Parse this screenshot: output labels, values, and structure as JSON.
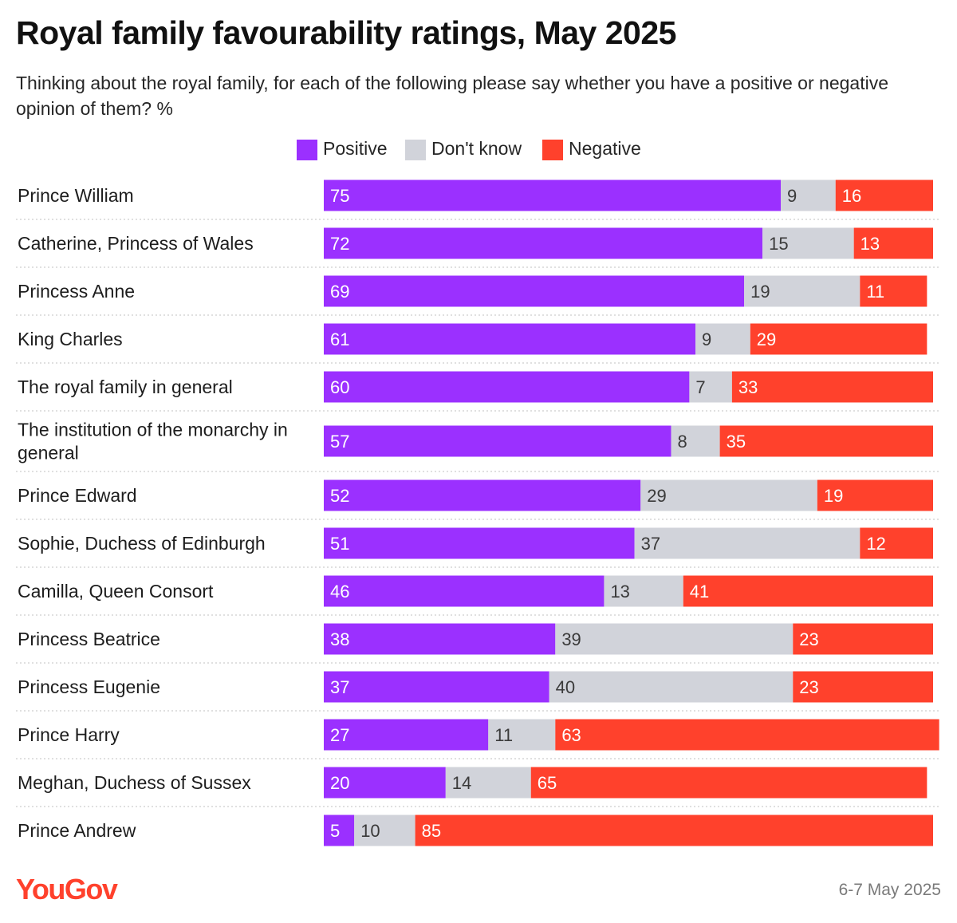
{
  "title": "Royal family favourability ratings, May 2025",
  "subtitle": "Thinking about the royal family, for each of the following please say whether you have a positive or negative opinion of them? %",
  "brand": "YouGov",
  "date_note": "6-7 May 2025",
  "colors": {
    "positive": "#9b30ff",
    "dont_know": "#d1d3da",
    "negative": "#ff412c",
    "divider": "#d6d6d6",
    "brand": "#ff412c"
  },
  "chart_data": {
    "type": "bar",
    "orientation": "horizontal",
    "stacked": true,
    "unit": "%",
    "legend_position": "top-center",
    "legend": [
      {
        "key": "positive",
        "label": "Positive"
      },
      {
        "key": "dont_know",
        "label": "Don't know"
      },
      {
        "key": "negative",
        "label": "Negative"
      }
    ],
    "categories": [
      "Prince William",
      "Catherine, Princess of Wales",
      "Princess Anne",
      "King Charles",
      "The royal family in general",
      "The institution of the monarchy in general",
      "Prince Edward",
      "Sophie, Duchess of Edinburgh",
      "Camilla, Queen Consort",
      "Princess Beatrice",
      "Princess Eugenie",
      "Prince Harry",
      "Meghan, Duchess of Sussex",
      "Prince Andrew"
    ],
    "series": [
      {
        "key": "positive",
        "name": "Positive",
        "values": [
          75,
          72,
          69,
          61,
          60,
          57,
          52,
          51,
          46,
          38,
          37,
          27,
          20,
          5
        ]
      },
      {
        "key": "dont_know",
        "name": "Don't know",
        "values": [
          9,
          15,
          19,
          9,
          7,
          8,
          29,
          37,
          13,
          39,
          40,
          11,
          14,
          10
        ]
      },
      {
        "key": "negative",
        "name": "Negative",
        "values": [
          16,
          13,
          11,
          29,
          33,
          35,
          19,
          12,
          41,
          23,
          23,
          63,
          65,
          85
        ]
      }
    ]
  }
}
